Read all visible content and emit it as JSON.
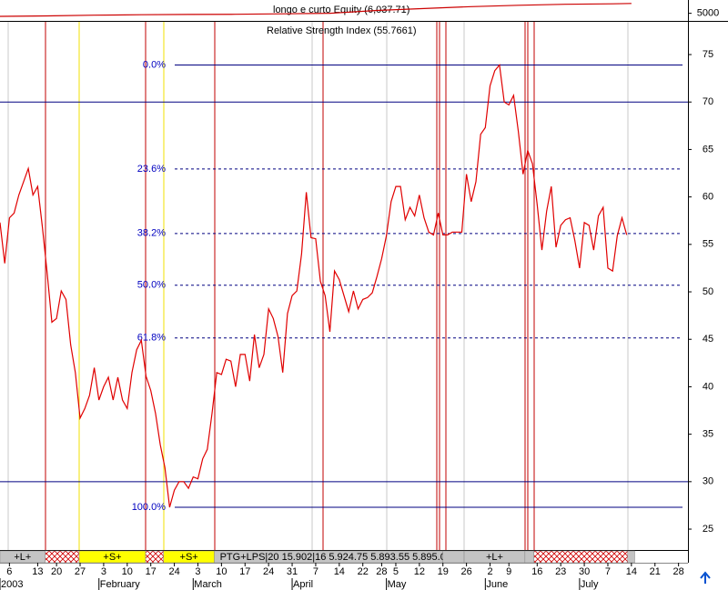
{
  "chart_data": [
    {
      "type": "line",
      "title": "longo e curto Equity (6,037.71)",
      "color": "#cc0000",
      "x": [
        0,
        10,
        20,
        30,
        40,
        50,
        60,
        70,
        80,
        90,
        100,
        110,
        120,
        130,
        134
      ],
      "values": [
        4680,
        4730,
        4800,
        4850,
        4880,
        4900,
        4950,
        5000,
        5300,
        5500,
        5700,
        5850,
        5950,
        6000,
        6037.71
      ],
      "ylim": [
        4200,
        6400
      ],
      "yticks": [
        5000
      ],
      "xlim": [
        0,
        146
      ]
    },
    {
      "type": "line",
      "title": "Relative Strength Index (55.7661)",
      "color": "#e00000",
      "values": [
        57.3,
        53,
        57.8,
        58.3,
        60.2,
        61.6,
        63,
        60.2,
        61.1,
        56.8,
        52,
        46.8,
        47.2,
        50.1,
        49.2,
        44.4,
        41.5,
        36.7,
        37.7,
        39.1,
        42,
        38.6,
        40,
        41,
        38.6,
        41,
        38.6,
        37.7,
        41.5,
        43.9,
        44.9,
        41.1,
        39.6,
        37.2,
        33.9,
        31.5,
        27.3,
        29.1,
        30,
        30,
        29.3,
        30.5,
        30.3,
        32.4,
        33.4,
        37.2,
        41.5,
        41.3,
        42.9,
        42.7,
        40,
        43.4,
        43.4,
        40.6,
        45.5,
        42,
        43.4,
        48.2,
        47.2,
        45.3,
        41.5,
        47.7,
        49.6,
        50.1,
        54,
        60.5,
        55.7,
        55.6,
        51.1,
        49.6,
        45.8,
        52.2,
        51.3,
        49.6,
        47.9,
        50.1,
        48.2,
        49.2,
        49.4,
        49.9,
        51.6,
        53.5,
        55.9,
        59.5,
        61.1,
        61.1,
        57.6,
        58.9,
        58,
        60.2,
        57.8,
        56.3,
        56,
        58.3,
        56,
        56,
        56.3,
        56.3,
        56.3,
        62.4,
        59.5,
        61.6,
        66.6,
        67.3,
        71.7,
        73.3,
        73.9,
        70,
        69.7,
        70.7,
        66.9,
        62.4,
        64.9,
        63.5,
        59.2,
        54.4,
        58.5,
        61.1,
        54.7,
        57,
        57.6,
        57.8,
        55.4,
        52.5,
        57.3,
        57,
        54.4,
        58,
        58.9,
        52.5,
        52.2,
        55.9,
        57.8,
        56
      ],
      "xlim": [
        0,
        146
      ],
      "ylim": [
        22.8,
        78.45
      ],
      "yticks": [
        25,
        30,
        35,
        40,
        45,
        50,
        55,
        60,
        65,
        70,
        75
      ],
      "hlines": [
        70,
        30
      ],
      "levels": [
        {
          "label": "0.0%",
          "value": 73.9,
          "dash": false
        },
        {
          "label": "23.6%",
          "value": 62.94,
          "dash": true
        },
        {
          "label": "38.2%",
          "value": 56.15,
          "dash": true
        },
        {
          "label": "50.0%",
          "value": 50.7,
          "dash": true
        },
        {
          "label": "61.8%",
          "value": 45.14,
          "dash": true
        },
        {
          "label": "100.0%",
          "value": 27.3,
          "dash": false
        }
      ],
      "xticks": [
        {
          "value": 2,
          "label": "6"
        },
        {
          "value": 8,
          "label": "13"
        },
        {
          "value": 12,
          "label": "20"
        },
        {
          "value": 17,
          "label": "27"
        },
        {
          "value": 22,
          "label": "3"
        },
        {
          "value": 27,
          "label": "10"
        },
        {
          "value": 32,
          "label": "17"
        },
        {
          "value": 37,
          "label": "24"
        },
        {
          "value": 42,
          "label": "3"
        },
        {
          "value": 47,
          "label": "10"
        },
        {
          "value": 52,
          "label": "17"
        },
        {
          "value": 57,
          "label": "24"
        },
        {
          "value": 62,
          "label": "31"
        },
        {
          "value": 67,
          "label": "7"
        },
        {
          "value": 72,
          "label": "14"
        },
        {
          "value": 77,
          "label": "22"
        },
        {
          "value": 81,
          "label": "28"
        },
        {
          "value": 84,
          "label": "5"
        },
        {
          "value": 89,
          "label": "12"
        },
        {
          "value": 94,
          "label": "19"
        },
        {
          "value": 99,
          "label": "26"
        },
        {
          "value": 104,
          "label": "2"
        },
        {
          "value": 108,
          "label": "9"
        },
        {
          "value": 114,
          "label": "16"
        },
        {
          "value": 119,
          "label": "23"
        },
        {
          "value": 124,
          "label": "30"
        },
        {
          "value": 129,
          "label": "7"
        },
        {
          "value": 134,
          "label": "14"
        },
        {
          "value": 139,
          "label": "21"
        },
        {
          "value": 144,
          "label": "28"
        }
      ],
      "months": [
        {
          "value": 0,
          "label": "2003"
        },
        {
          "value": 21,
          "label": "February"
        },
        {
          "value": 41,
          "label": "March"
        },
        {
          "value": 62,
          "label": "April"
        },
        {
          "value": 82,
          "label": "May"
        },
        {
          "value": 103,
          "label": "June"
        },
        {
          "value": 123,
          "label": "July"
        }
      ],
      "strip": [
        {
          "start": 0,
          "end": 9.6,
          "style": "gray",
          "label": "+L+"
        },
        {
          "start": 9.6,
          "end": 16.8,
          "style": "hatch"
        },
        {
          "start": 16.8,
          "end": 30.9,
          "style": "yellow",
          "label": "+S+"
        },
        {
          "start": 30.9,
          "end": 34.7,
          "style": "hatch"
        },
        {
          "start": 34.7,
          "end": 45.5,
          "style": "yellow",
          "label": "+S+"
        },
        {
          "start": 45.5,
          "end": 94,
          "style": "gray",
          "label": "PTG+LPS|20 15.902|16 5.924.75 5.893.55 5.895.051"
        },
        {
          "start": 94,
          "end": 98.5,
          "style": "gray"
        },
        {
          "start": 98.5,
          "end": 111.4,
          "style": "gray",
          "label": "+L+"
        },
        {
          "start": 111.4,
          "end": 113.3,
          "style": "gray"
        },
        {
          "start": 113.3,
          "end": 133.2,
          "style": "hatch"
        },
        {
          "start": 133.2,
          "end": 134.7,
          "style": "gray"
        }
      ]
    }
  ]
}
